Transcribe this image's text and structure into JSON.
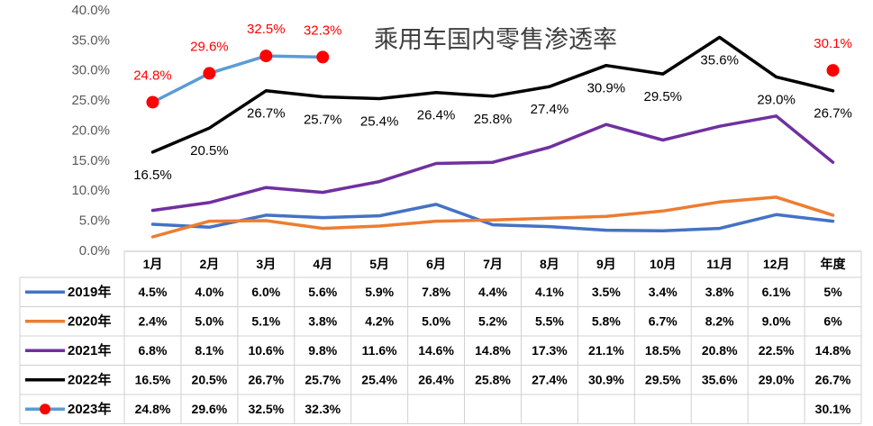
{
  "chart_data": {
    "type": "line",
    "title": "乘用车国内零售渗透率",
    "categories": [
      "1月",
      "2月",
      "3月",
      "4月",
      "5月",
      "6月",
      "7月",
      "8月",
      "9月",
      "10月",
      "11月",
      "12月",
      "年度"
    ],
    "ylim": [
      0,
      40
    ],
    "yticks": [
      "0.0%",
      "5.0%",
      "10.0%",
      "15.0%",
      "20.0%",
      "25.0%",
      "30.0%",
      "35.0%",
      "40.0%"
    ],
    "grid": false,
    "data_table": true,
    "legend_placement": "data-table-left",
    "series": [
      {
        "name": "2019年",
        "color": "#4472C4",
        "values": [
          4.5,
          4.0,
          6.0,
          5.6,
          5.9,
          7.8,
          4.4,
          4.1,
          3.5,
          3.4,
          3.8,
          6.1,
          5
        ],
        "labels": [
          "4.5%",
          "4.0%",
          "6.0%",
          "5.6%",
          "5.9%",
          "7.8%",
          "4.4%",
          "4.1%",
          "3.5%",
          "3.4%",
          "3.8%",
          "6.1%",
          "5%"
        ],
        "data_labels": "none"
      },
      {
        "name": "2020年",
        "color": "#ED7D31",
        "values": [
          2.4,
          5.0,
          5.1,
          3.8,
          4.2,
          5.0,
          5.2,
          5.5,
          5.8,
          6.7,
          8.2,
          9.0,
          6
        ],
        "labels": [
          "2.4%",
          "5.0%",
          "5.1%",
          "3.8%",
          "4.2%",
          "5.0%",
          "5.2%",
          "5.5%",
          "5.8%",
          "6.7%",
          "8.2%",
          "9.0%",
          "6%"
        ],
        "data_labels": "none"
      },
      {
        "name": "2021年",
        "color": "#7030A0",
        "values": [
          6.8,
          8.1,
          10.6,
          9.8,
          11.6,
          14.6,
          14.8,
          17.3,
          21.1,
          18.5,
          20.8,
          22.5,
          14.8
        ],
        "labels": [
          "6.8%",
          "8.1%",
          "10.6%",
          "9.8%",
          "11.6%",
          "14.6%",
          "14.8%",
          "17.3%",
          "21.1%",
          "18.5%",
          "20.8%",
          "22.5%",
          "14.8%"
        ],
        "data_labels": "none"
      },
      {
        "name": "2022年",
        "color": "#000000",
        "values": [
          16.5,
          20.5,
          26.7,
          25.7,
          25.4,
          26.4,
          25.8,
          27.4,
          30.9,
          29.5,
          35.6,
          29.0,
          26.7
        ],
        "labels": [
          "16.5%",
          "20.5%",
          "26.7%",
          "25.7%",
          "25.4%",
          "26.4%",
          "25.8%",
          "27.4%",
          "30.9%",
          "29.5%",
          "35.6%",
          "29.0%",
          "26.7%"
        ],
        "data_labels": "below",
        "label_color": "#000000"
      },
      {
        "name": "2023年",
        "color": "#5B9BD5",
        "marker_color": "#FF0000",
        "values": [
          24.8,
          29.6,
          32.5,
          32.3,
          null,
          null,
          null,
          null,
          null,
          null,
          null,
          null,
          30.1
        ],
        "labels": [
          "24.8%",
          "29.6%",
          "32.5%",
          "32.3%",
          null,
          null,
          null,
          null,
          null,
          null,
          null,
          null,
          "30.1%"
        ],
        "data_labels": "above",
        "label_color": "#FF0000"
      }
    ]
  }
}
